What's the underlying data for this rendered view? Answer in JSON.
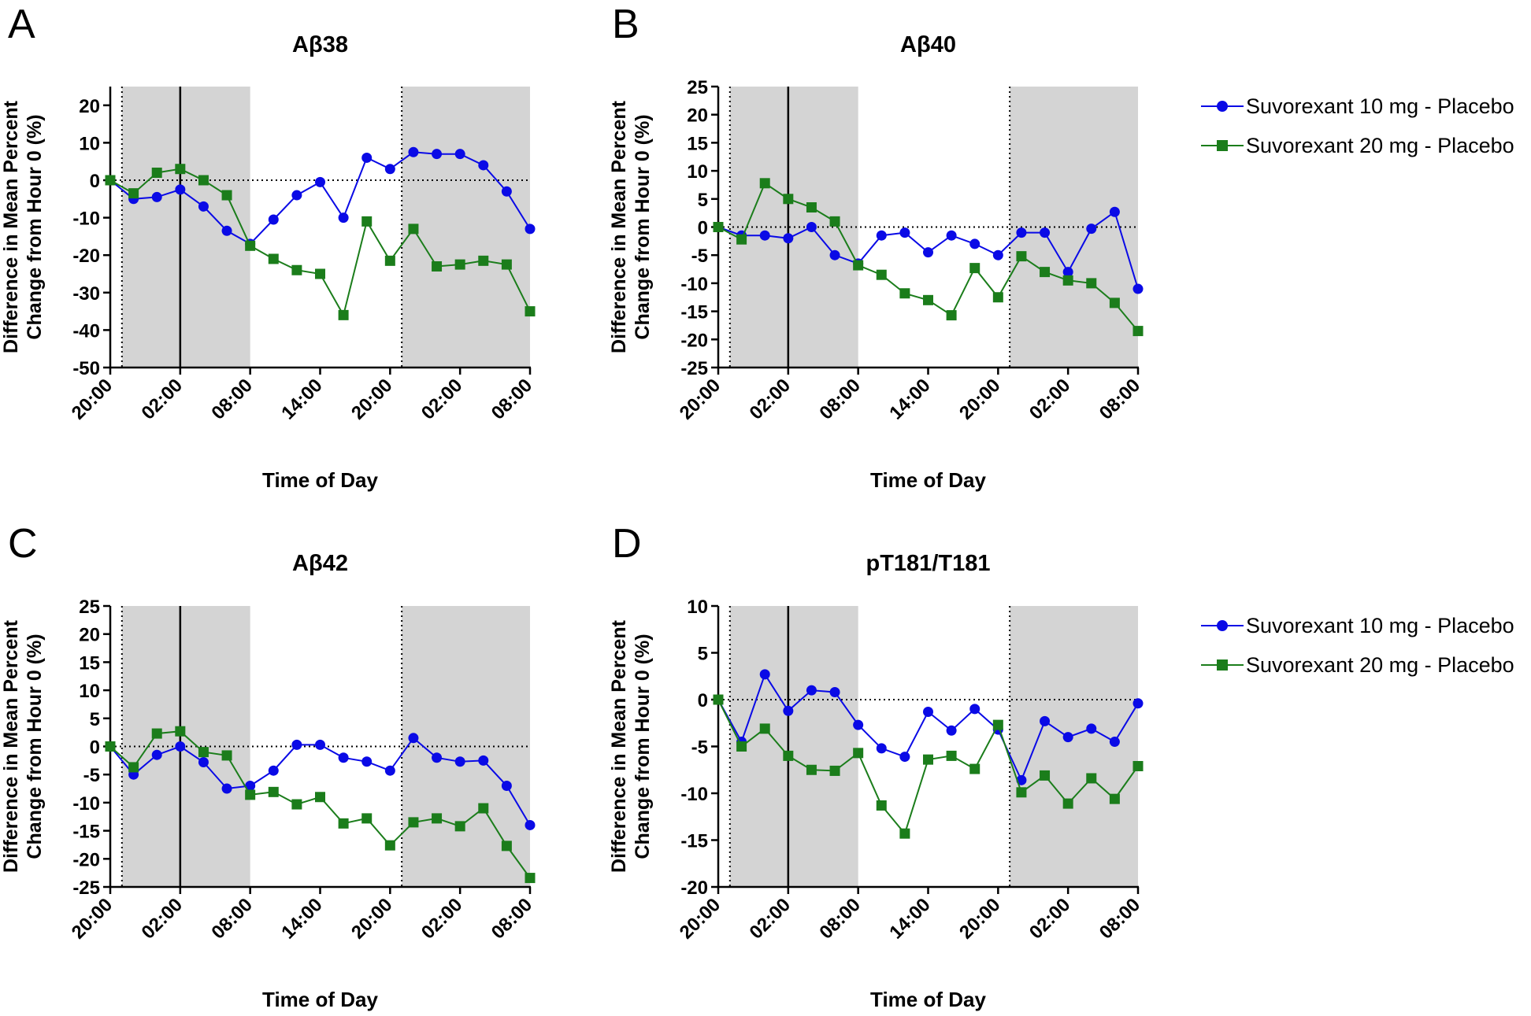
{
  "figure": {
    "legend": {
      "series1": "Suvorexant 10 mg - Placebo",
      "series2": "Suvorexant 20 mg - Placebo"
    }
  },
  "colors": {
    "series1": "#0a0ae6",
    "series2": "#1b7d1b",
    "shade": "#d4d4d4",
    "axis": "#000000"
  },
  "chart_data": [
    {
      "type": "line",
      "panel": "A",
      "title": "Aβ38",
      "xlabel": "Time of Day",
      "ylabel_line1": "Difference in Mean Percent",
      "ylabel_line2": "Change from Hour 0 (%)",
      "xlim": [
        0,
        36
      ],
      "ylim": [
        -50,
        25
      ],
      "yticks": [
        -50,
        -40,
        -30,
        -20,
        -10,
        0,
        10,
        20
      ],
      "xtick_positions": [
        0,
        6,
        12,
        18,
        24,
        30,
        36
      ],
      "xtick_labels": [
        "20:00",
        "02:00",
        "08:00",
        "14:00",
        "20:00",
        "02:00",
        "08:00"
      ],
      "shaded_ranges": [
        [
          1,
          12
        ],
        [
          25,
          36
        ]
      ],
      "dotted_vlines": [
        1,
        25
      ],
      "solid_vline": 6,
      "zero_line": 0,
      "series": [
        {
          "name": "Suvorexant 10 mg - Placebo",
          "x": [
            0,
            2,
            4,
            6,
            8,
            10,
            12,
            14,
            16,
            18,
            20,
            22,
            24,
            26,
            28,
            30,
            32,
            34,
            36
          ],
          "y": [
            0,
            -5,
            -4.5,
            -2.5,
            -7,
            -13.5,
            -17,
            -10.5,
            -4,
            -0.5,
            -10,
            6,
            3,
            7.5,
            7,
            7,
            4,
            -3,
            -13
          ]
        },
        {
          "name": "Suvorexant 20 mg - Placebo",
          "x": [
            0,
            2,
            4,
            6,
            8,
            10,
            12,
            14,
            16,
            18,
            20,
            22,
            24,
            26,
            28,
            30,
            32,
            34,
            36
          ],
          "y": [
            0,
            -3.5,
            2,
            3,
            0,
            -4,
            -17.5,
            -21,
            -24,
            -25,
            -36,
            -11,
            -21.5,
            -13,
            -23,
            -22.5,
            -21.5,
            -22.5,
            -35
          ]
        }
      ]
    },
    {
      "type": "line",
      "panel": "B",
      "title": "Aβ40",
      "xlabel": "Time of Day",
      "ylabel_line1": "Difference in Mean Percent",
      "ylabel_line2": "Change from Hour 0 (%)",
      "xlim": [
        0,
        36
      ],
      "ylim": [
        -25,
        25
      ],
      "yticks": [
        -25,
        -20,
        -15,
        -10,
        -5,
        0,
        5,
        10,
        15,
        20,
        25
      ],
      "xtick_positions": [
        0,
        6,
        12,
        18,
        24,
        30,
        36
      ],
      "xtick_labels": [
        "20:00",
        "02:00",
        "08:00",
        "14:00",
        "20:00",
        "02:00",
        "08:00"
      ],
      "shaded_ranges": [
        [
          1,
          12
        ],
        [
          25,
          36
        ]
      ],
      "dotted_vlines": [
        1,
        25
      ],
      "solid_vline": 6,
      "zero_line": 0,
      "series": [
        {
          "name": "Suvorexant 10 mg - Placebo",
          "x": [
            0,
            2,
            4,
            6,
            8,
            10,
            12,
            14,
            16,
            18,
            20,
            22,
            24,
            26,
            28,
            30,
            32,
            34,
            36
          ],
          "y": [
            0,
            -1.5,
            -1.5,
            -2,
            0,
            -5,
            -6.5,
            -1.5,
            -1,
            -4.5,
            -1.5,
            -3,
            -5,
            -1,
            -1,
            -8,
            -0.3,
            2.7,
            -11
          ]
        },
        {
          "name": "Suvorexant 20 mg - Placebo",
          "x": [
            0,
            2,
            4,
            6,
            8,
            10,
            12,
            14,
            16,
            18,
            20,
            22,
            24,
            26,
            28,
            30,
            32,
            34,
            36
          ],
          "y": [
            0,
            -2.2,
            7.8,
            5,
            3.5,
            1,
            -6.8,
            -8.5,
            -11.8,
            -13,
            -15.7,
            -7.3,
            -12.5,
            -5.2,
            -8,
            -9.5,
            -10,
            -13.5,
            -18.5
          ]
        }
      ]
    },
    {
      "type": "line",
      "panel": "C",
      "title": "Aβ42",
      "xlabel": "Time of Day",
      "ylabel_line1": "Difference in Mean Percent",
      "ylabel_line2": "Change from Hour 0 (%)",
      "xlim": [
        0,
        36
      ],
      "ylim": [
        -25,
        25
      ],
      "yticks": [
        -25,
        -20,
        -15,
        -10,
        -5,
        0,
        5,
        10,
        15,
        20,
        25
      ],
      "xtick_positions": [
        0,
        6,
        12,
        18,
        24,
        30,
        36
      ],
      "xtick_labels": [
        "20:00",
        "02:00",
        "08:00",
        "14:00",
        "20:00",
        "02:00",
        "08:00"
      ],
      "shaded_ranges": [
        [
          1,
          12
        ],
        [
          25,
          36
        ]
      ],
      "dotted_vlines": [
        1,
        25
      ],
      "solid_vline": 6,
      "zero_line": 0,
      "series": [
        {
          "name": "Suvorexant 10 mg - Placebo",
          "x": [
            0,
            2,
            4,
            6,
            8,
            10,
            12,
            14,
            16,
            18,
            20,
            22,
            24,
            26,
            28,
            30,
            32,
            34,
            36
          ],
          "y": [
            0,
            -5,
            -1.5,
            0,
            -2.8,
            -7.5,
            -7,
            -4.3,
            0.3,
            0.3,
            -2,
            -2.7,
            -4.3,
            1.5,
            -2,
            -2.7,
            -2.5,
            -7,
            -14
          ]
        },
        {
          "name": "Suvorexant 20 mg - Placebo",
          "x": [
            0,
            2,
            4,
            6,
            8,
            10,
            12,
            14,
            16,
            18,
            20,
            22,
            24,
            26,
            28,
            30,
            32,
            34,
            36
          ],
          "y": [
            0,
            -3.7,
            2.3,
            2.7,
            -1,
            -1.6,
            -8.6,
            -8.1,
            -10.3,
            -9,
            -13.7,
            -12.8,
            -17.6,
            -13.5,
            -12.8,
            -14.2,
            -11,
            -17.7,
            -23.4
          ]
        }
      ]
    },
    {
      "type": "line",
      "panel": "D",
      "title": "pT181/T181",
      "xlabel": "Time of Day",
      "ylabel_line1": "Difference in Mean Percent",
      "ylabel_line2": "Change from Hour 0 (%)",
      "xlim": [
        0,
        36
      ],
      "ylim": [
        -20,
        10
      ],
      "yticks": [
        -20,
        -15,
        -10,
        -5,
        0,
        5,
        10
      ],
      "xtick_positions": [
        0,
        6,
        12,
        18,
        24,
        30,
        36
      ],
      "xtick_labels": [
        "20:00",
        "02:00",
        "08:00",
        "14:00",
        "20:00",
        "02:00",
        "08:00"
      ],
      "shaded_ranges": [
        [
          1,
          12
        ],
        [
          25,
          36
        ]
      ],
      "dotted_vlines": [
        1,
        25
      ],
      "solid_vline": 6,
      "zero_line": 0,
      "series": [
        {
          "name": "Suvorexant 10 mg - Placebo",
          "x": [
            0,
            2,
            4,
            6,
            8,
            10,
            12,
            14,
            16,
            18,
            20,
            22,
            24,
            26,
            28,
            30,
            32,
            34,
            36
          ],
          "y": [
            0,
            -4.5,
            2.7,
            -1.2,
            1,
            0.8,
            -2.7,
            -5.2,
            -6.1,
            -1.3,
            -3.3,
            -1,
            -3.2,
            -8.6,
            -2.3,
            -4,
            -3.1,
            -4.5,
            -0.4
          ]
        },
        {
          "name": "Suvorexant 20 mg - Placebo",
          "x": [
            0,
            2,
            4,
            6,
            8,
            10,
            12,
            14,
            16,
            18,
            20,
            22,
            24,
            26,
            28,
            30,
            32,
            34,
            36
          ],
          "y": [
            0,
            -5,
            -3.1,
            -6,
            -7.5,
            -7.6,
            -5.7,
            -11.3,
            -14.3,
            -6.4,
            -6,
            -7.4,
            -2.7,
            -9.9,
            -8.1,
            -11.1,
            -8.4,
            -10.6,
            -7.1
          ]
        }
      ]
    }
  ]
}
